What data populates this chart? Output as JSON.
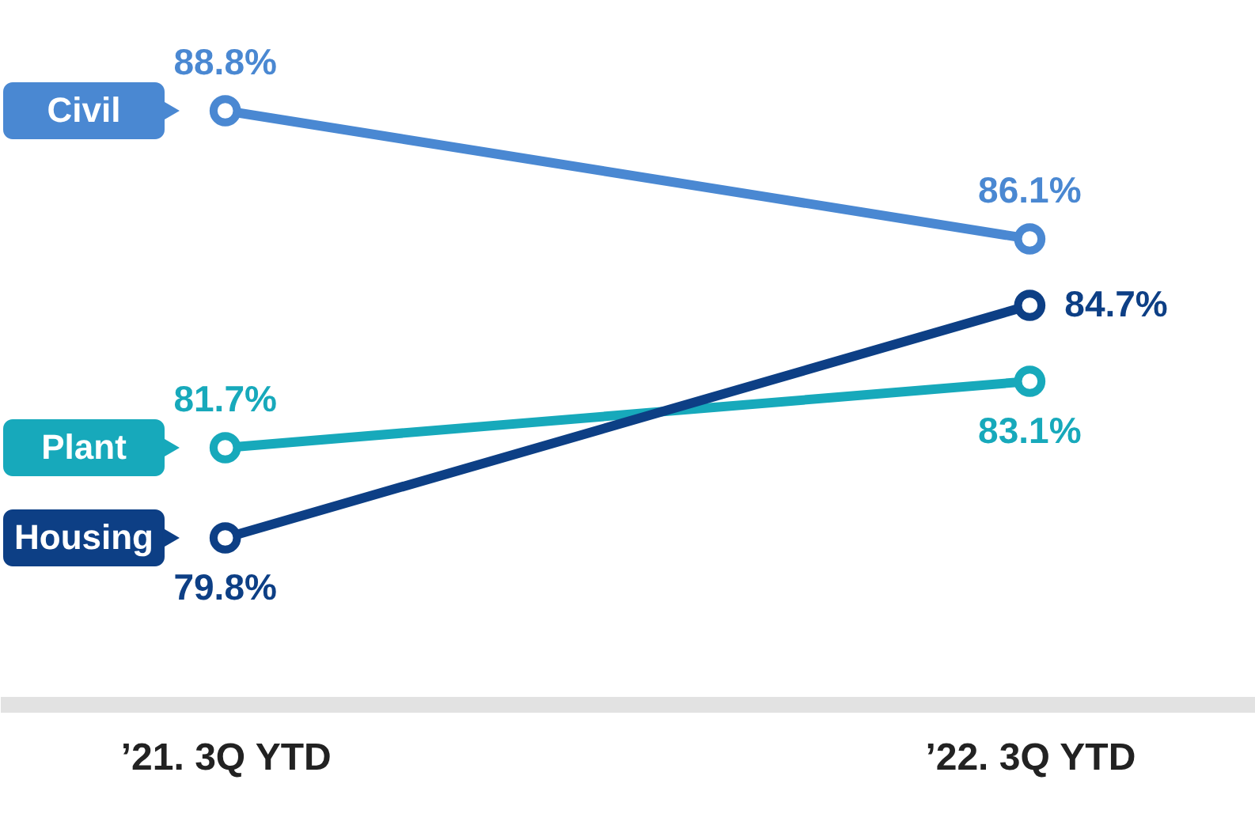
{
  "chart_data": {
    "type": "line",
    "categories": [
      "’21. 3Q YTD",
      "’22. 3Q YTD"
    ],
    "marker": "circle",
    "data_labels": true,
    "legend": "left",
    "series": [
      {
        "name": "Civil",
        "color": "#4a88d2",
        "values": [
          88.8,
          86.1
        ],
        "value_labels": [
          "88.8%",
          "86.1%"
        ]
      },
      {
        "name": "Plant",
        "color": "#17a9bb",
        "values": [
          81.7,
          83.1
        ],
        "value_labels": [
          "81.7%",
          "83.1%"
        ]
      },
      {
        "name": "Housing",
        "color": "#0d3f85",
        "values": [
          79.8,
          84.7
        ],
        "value_labels": [
          "79.8%",
          "84.7%"
        ]
      }
    ]
  }
}
